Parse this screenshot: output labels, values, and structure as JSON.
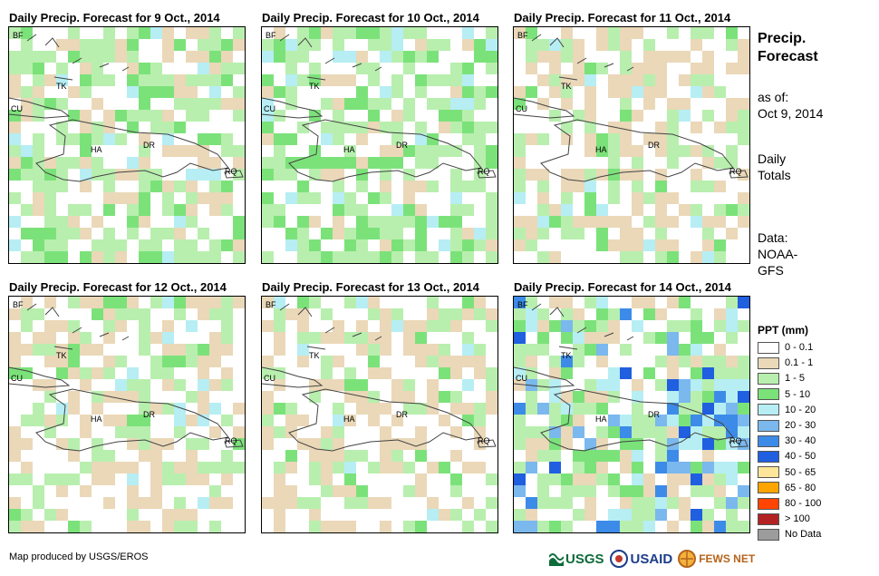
{
  "panels": [
    {
      "title": "Daily Precip. Forecast for 9 Oct., 2014"
    },
    {
      "title": "Daily Precip. Forecast for 10 Oct., 2014"
    },
    {
      "title": "Daily Precip. Forecast for 11 Oct., 2014"
    },
    {
      "title": "Daily Precip. Forecast for 12 Oct., 2014"
    },
    {
      "title": "Daily Precip. Forecast for 13 Oct., 2014"
    },
    {
      "title": "Daily Precip. Forecast for 14 Oct., 2014"
    }
  ],
  "map_labels": {
    "bf": "BF",
    "tk": "TK",
    "cu": "CU",
    "ha": "HA",
    "dr": "DR",
    "rq": "RQ"
  },
  "sidebar": {
    "title_line1": "Precip.",
    "title_line2": "Forecast",
    "asof_line1": "as of:",
    "asof_line2": "Oct 9, 2014",
    "totals_line1": "Daily",
    "totals_line2": "Totals",
    "data_line1": "Data:",
    "data_line2": "NOAA-",
    "data_line3": "GFS"
  },
  "legend": {
    "title": "PPT (mm)",
    "items": [
      {
        "label": "0 - 0.1",
        "color": "#ffffff"
      },
      {
        "label": "0.1 - 1",
        "color": "#ead8b8"
      },
      {
        "label": "1 - 5",
        "color": "#b8efae"
      },
      {
        "label": "5 - 10",
        "color": "#7be27a"
      },
      {
        "label": "10 - 20",
        "color": "#b6eef4"
      },
      {
        "label": "20 - 30",
        "color": "#7ab8ee"
      },
      {
        "label": "30 - 40",
        "color": "#3d8be8"
      },
      {
        "label": "40 - 50",
        "color": "#1f5fe0"
      },
      {
        "label": "50 - 65",
        "color": "#fde599"
      },
      {
        "label": "65 - 80",
        "color": "#ffa500"
      },
      {
        "label": "80 - 100",
        "color": "#ff4500"
      },
      {
        "label": "> 100",
        "color": "#b22222"
      },
      {
        "label": "No Data",
        "color": "#9c9c9c"
      }
    ]
  },
  "footer": {
    "credit": "Map produced by USGS/EROS",
    "logo_usgs": "USGS",
    "logo_usaid": "USAID",
    "logo_fewsnet": "FEWS NET"
  }
}
